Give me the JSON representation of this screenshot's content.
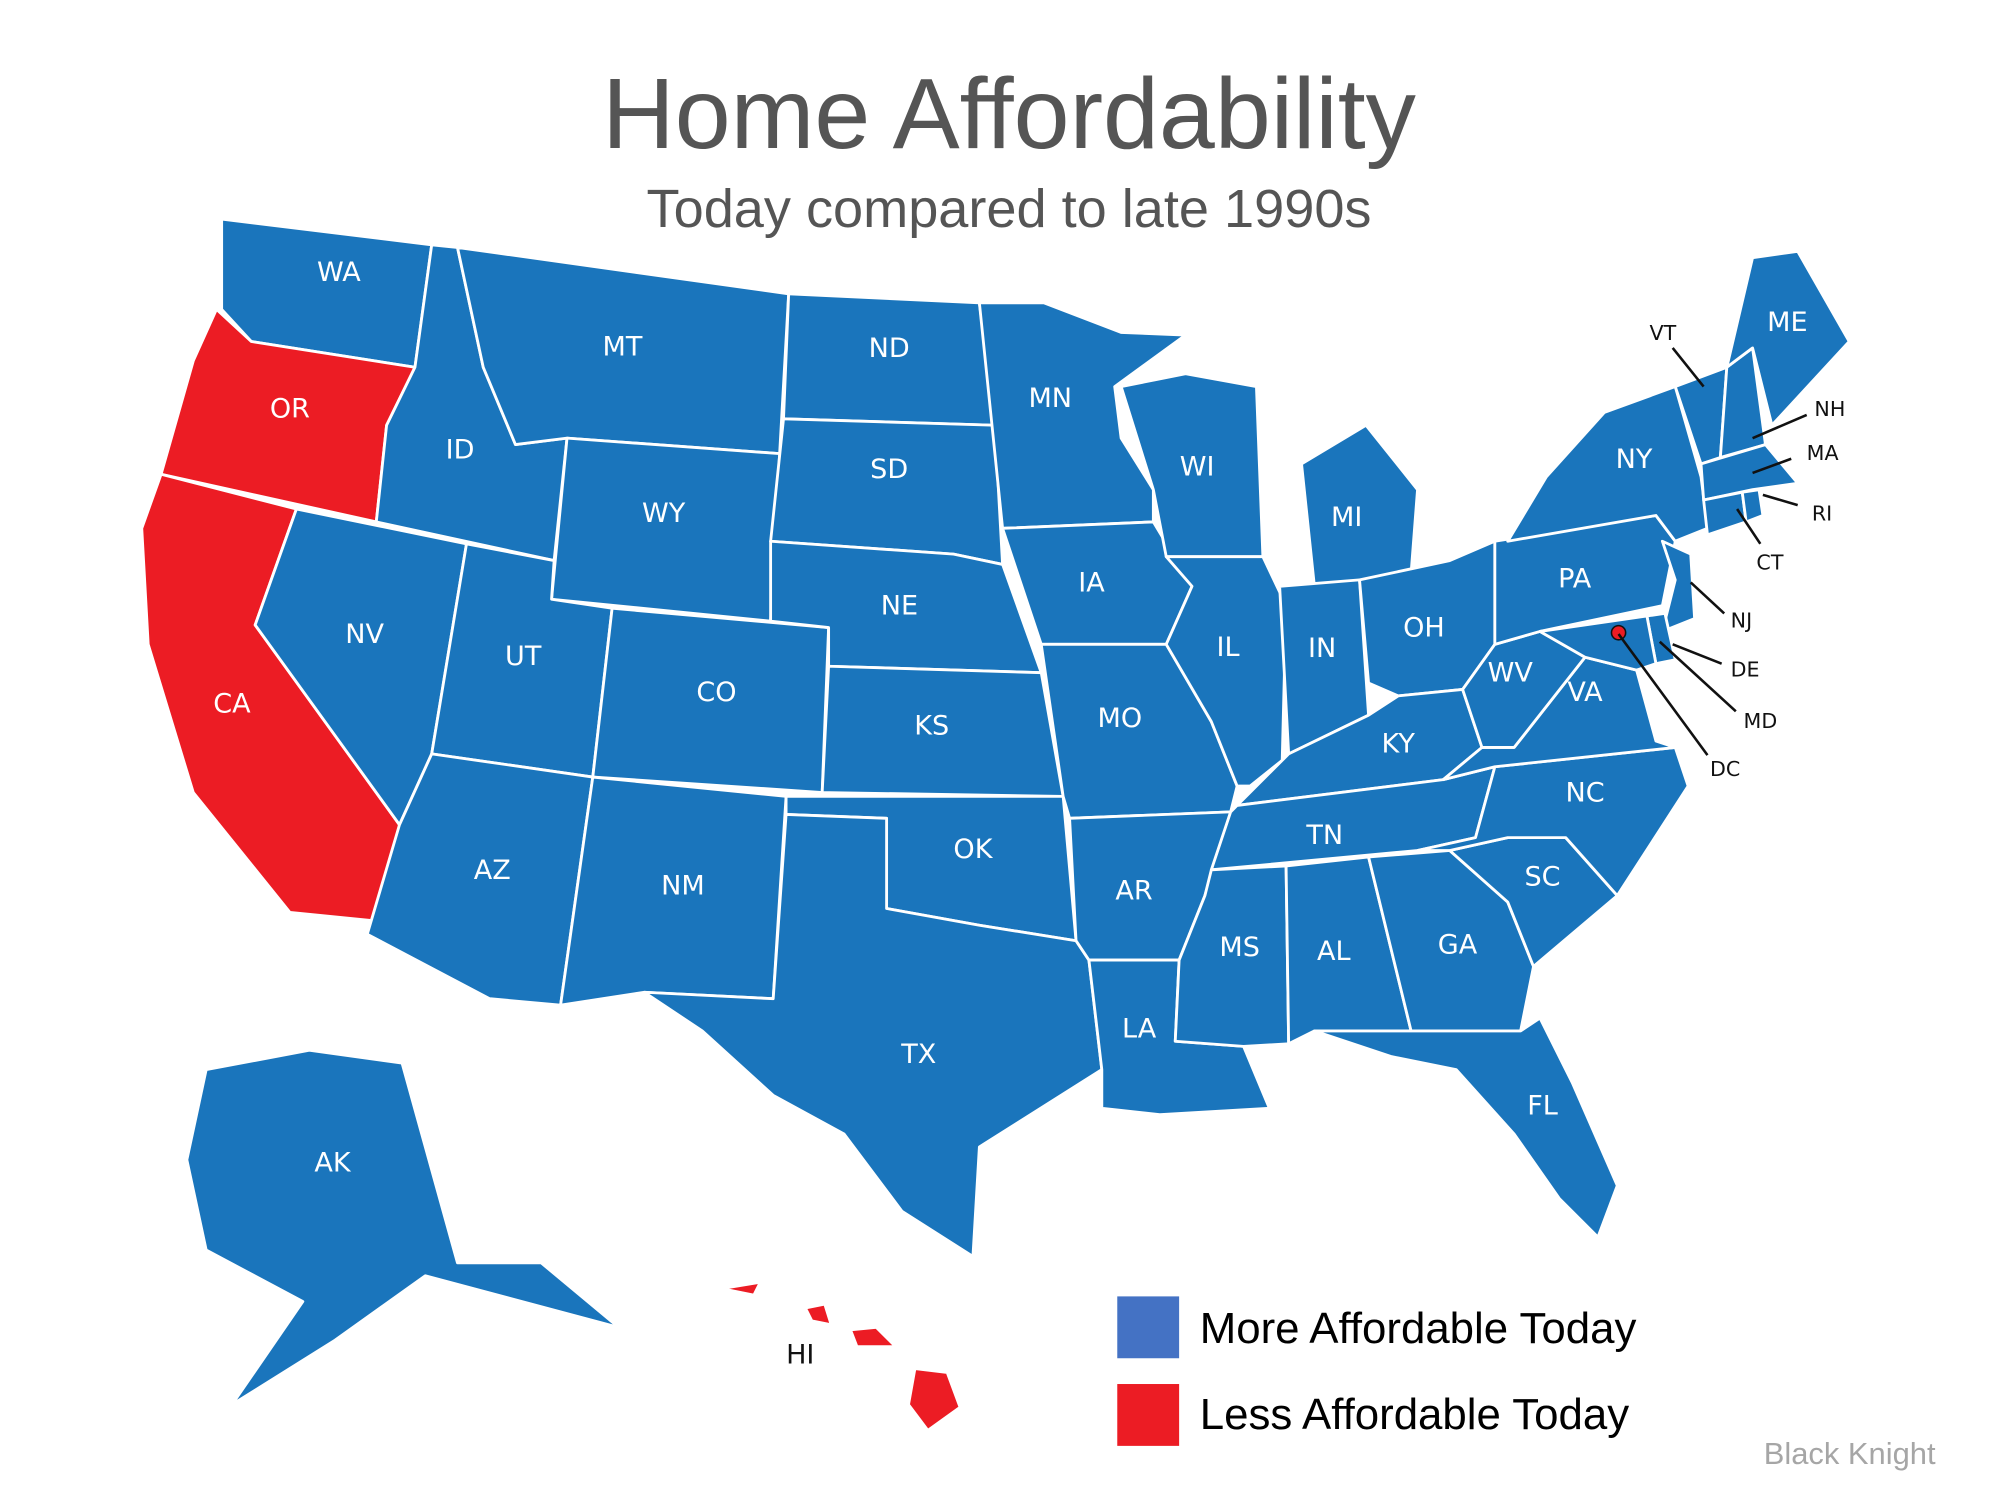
{
  "title": "Home Affordability",
  "subtitle": "Today compared to late 1990s",
  "colors": {
    "more_affordable": "#1a75bc",
    "less_affordable": "#ec1c24",
    "legend_more": "#4472c4",
    "legend_less": "#ec1c24",
    "title": "#555555",
    "source": "#a6a6a6"
  },
  "legend": {
    "more": "More Affordable Today",
    "less": "Less Affordable Today"
  },
  "source": "Black Knight",
  "states": [
    {
      "code": "WA",
      "status": "more"
    },
    {
      "code": "OR",
      "status": "less"
    },
    {
      "code": "CA",
      "status": "less"
    },
    {
      "code": "ID",
      "status": "more"
    },
    {
      "code": "NV",
      "status": "more"
    },
    {
      "code": "MT",
      "status": "more"
    },
    {
      "code": "WY",
      "status": "more"
    },
    {
      "code": "UT",
      "status": "more"
    },
    {
      "code": "AZ",
      "status": "more"
    },
    {
      "code": "CO",
      "status": "more"
    },
    {
      "code": "NM",
      "status": "more"
    },
    {
      "code": "ND",
      "status": "more"
    },
    {
      "code": "SD",
      "status": "more"
    },
    {
      "code": "NE",
      "status": "more"
    },
    {
      "code": "KS",
      "status": "more"
    },
    {
      "code": "OK",
      "status": "more"
    },
    {
      "code": "TX",
      "status": "more"
    },
    {
      "code": "MN",
      "status": "more"
    },
    {
      "code": "IA",
      "status": "more"
    },
    {
      "code": "MO",
      "status": "more"
    },
    {
      "code": "AR",
      "status": "more"
    },
    {
      "code": "LA",
      "status": "more"
    },
    {
      "code": "WI",
      "status": "more"
    },
    {
      "code": "IL",
      "status": "more"
    },
    {
      "code": "MI",
      "status": "more"
    },
    {
      "code": "IN",
      "status": "more"
    },
    {
      "code": "OH",
      "status": "more"
    },
    {
      "code": "KY",
      "status": "more"
    },
    {
      "code": "TN",
      "status": "more"
    },
    {
      "code": "MS",
      "status": "more"
    },
    {
      "code": "AL",
      "status": "more"
    },
    {
      "code": "GA",
      "status": "more"
    },
    {
      "code": "FL",
      "status": "more"
    },
    {
      "code": "SC",
      "status": "more"
    },
    {
      "code": "NC",
      "status": "more"
    },
    {
      "code": "VA",
      "status": "more"
    },
    {
      "code": "WV",
      "status": "more"
    },
    {
      "code": "PA",
      "status": "more"
    },
    {
      "code": "NY",
      "status": "more"
    },
    {
      "code": "NJ",
      "status": "more"
    },
    {
      "code": "DE",
      "status": "more"
    },
    {
      "code": "MD",
      "status": "more"
    },
    {
      "code": "DC",
      "status": "less"
    },
    {
      "code": "VT",
      "status": "more"
    },
    {
      "code": "NH",
      "status": "more"
    },
    {
      "code": "ME",
      "status": "more"
    },
    {
      "code": "MA",
      "status": "more"
    },
    {
      "code": "CT",
      "status": "more"
    },
    {
      "code": "RI",
      "status": "more"
    },
    {
      "code": "AK",
      "status": "more"
    },
    {
      "code": "HI",
      "status": "less"
    }
  ]
}
